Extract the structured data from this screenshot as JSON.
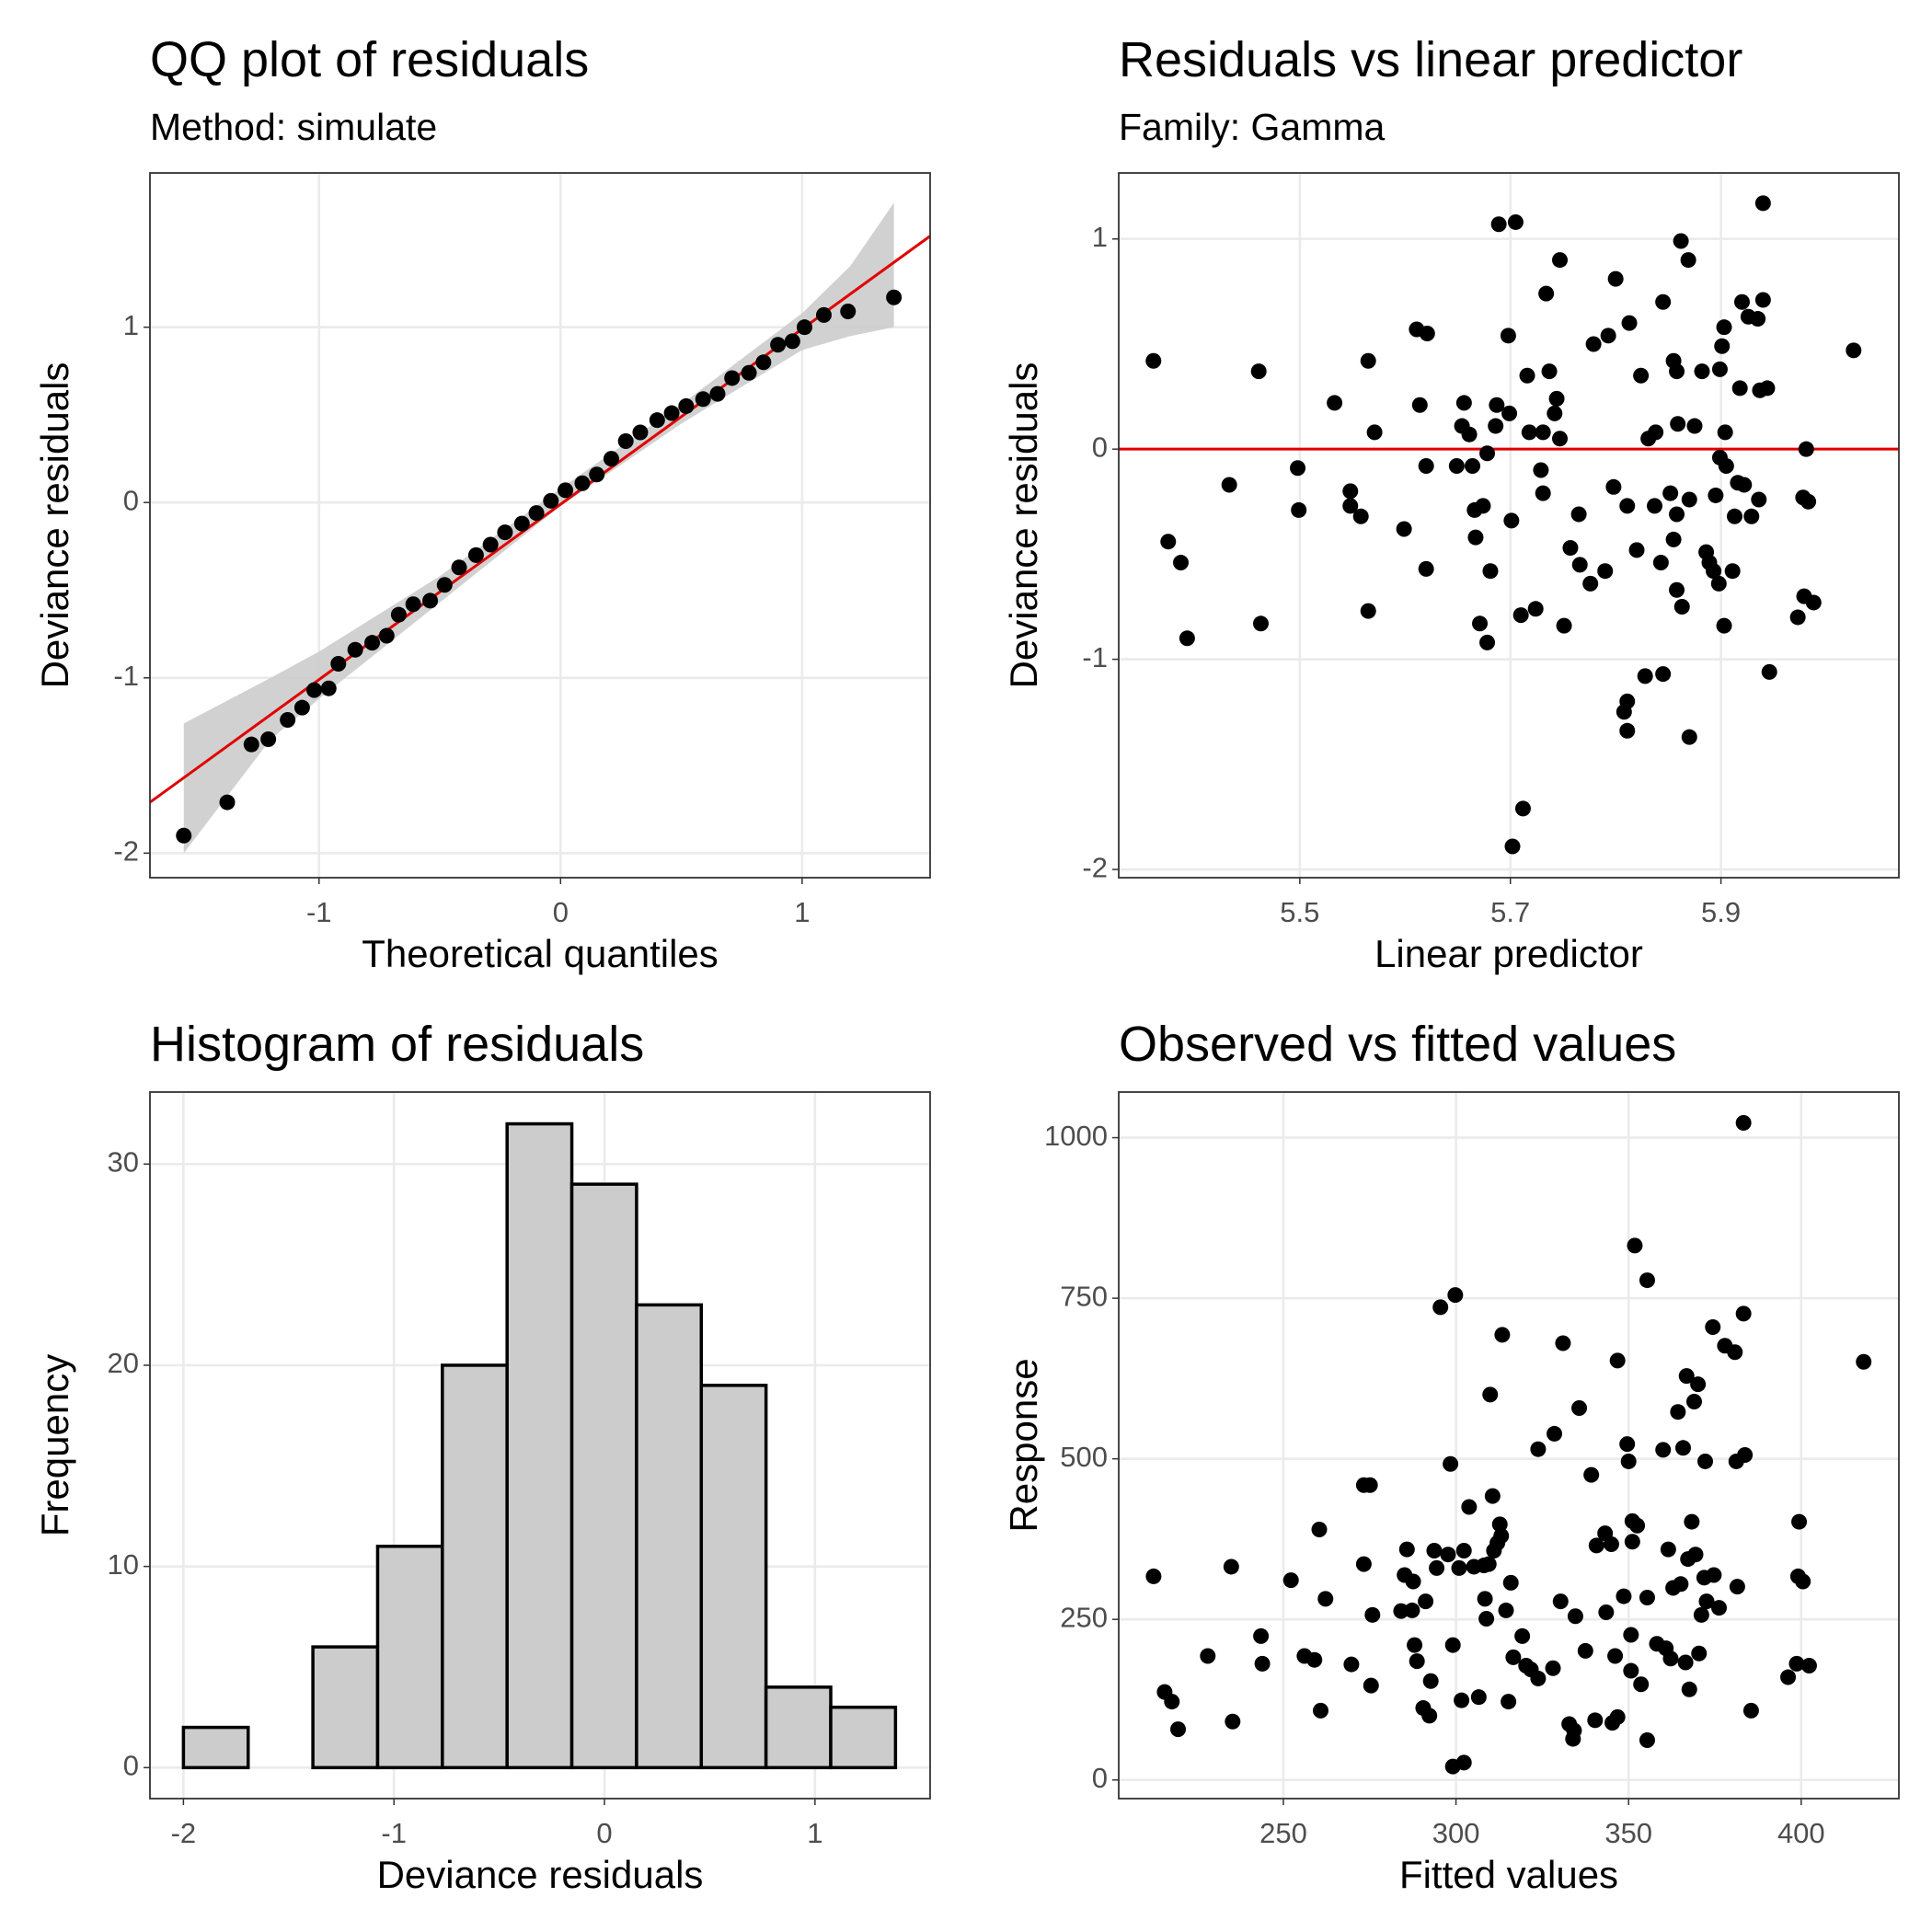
{
  "chart_data": [
    {
      "type": "qq",
      "title": "QQ plot of residuals",
      "subtitle": "Method: simulate",
      "xlabel": "Theoretical quantiles",
      "ylabel": "Deviance residuals",
      "xlim": [
        -1.7,
        1.53
      ],
      "ylim": [
        -2.14,
        1.88
      ],
      "xticks": [
        -1,
        0,
        1
      ],
      "yticks": [
        -2,
        -1,
        0,
        1
      ],
      "grid": true,
      "color": "#000000",
      "x": [
        -1.56,
        -1.38,
        -1.28,
        -1.21,
        -1.13,
        -1.07,
        -1.02,
        -0.96,
        -0.92,
        -0.85,
        -0.78,
        -0.72,
        -0.67,
        -0.61,
        -0.54,
        -0.48,
        -0.42,
        -0.35,
        -0.29,
        -0.23,
        -0.16,
        -0.1,
        -0.04,
        0.02,
        0.09,
        0.15,
        0.21,
        0.27,
        0.33,
        0.4,
        0.46,
        0.52,
        0.59,
        0.65,
        0.71,
        0.78,
        0.84,
        0.9,
        0.96,
        1.01,
        1.09,
        1.19,
        1.38
      ],
      "values": [
        -1.9,
        -1.71,
        -1.38,
        -1.35,
        -1.24,
        -1.17,
        -1.07,
        -1.06,
        -0.92,
        -0.84,
        -0.8,
        -0.76,
        -0.64,
        -0.58,
        -0.56,
        -0.47,
        -0.37,
        -0.3,
        -0.24,
        -0.17,
        -0.12,
        -0.06,
        0.01,
        0.07,
        0.11,
        0.16,
        0.25,
        0.35,
        0.4,
        0.47,
        0.51,
        0.55,
        0.59,
        0.62,
        0.71,
        0.74,
        0.8,
        0.9,
        0.92,
        1.0,
        1.07,
        1.09,
        1.17
      ],
      "band": {
        "color": "#cccccc",
        "x": [
          -1.56,
          -1.2,
          -1.0,
          -0.5,
          0,
          0.5,
          1.0,
          1.2,
          1.38
        ],
        "lower": [
          -2.0,
          -1.35,
          -1.12,
          -0.57,
          -0.02,
          0.45,
          0.87,
          0.95,
          1.0
        ],
        "upper": [
          -1.26,
          -1.0,
          -0.85,
          -0.42,
          0.08,
          0.56,
          1.08,
          1.35,
          1.71
        ]
      },
      "reference_line": {
        "intercept": -0.01,
        "slope": 1.0,
        "color": "#e00000"
      }
    },
    {
      "type": "scatter",
      "title": "Residuals vs linear predictor",
      "subtitle": "Family: Gamma",
      "xlabel": "Linear predictor",
      "ylabel": "Deviance residuals",
      "xlim": [
        5.328,
        6.069
      ],
      "ylim": [
        -2.039,
        1.314
      ],
      "xticks": [
        5.5,
        5.7,
        5.9
      ],
      "yticks": [
        -2,
        -1,
        0,
        1
      ],
      "grid": true,
      "color": "#000000",
      "hline": {
        "value": 0,
        "color": "#e00000"
      },
      "x": [
        5.361,
        5.375,
        5.387,
        5.393,
        5.433,
        5.461,
        5.463,
        5.498,
        5.499,
        5.533,
        5.548,
        5.548,
        5.558,
        5.565,
        5.565,
        5.571,
        5.599,
        5.611,
        5.614,
        5.621,
        5.62,
        5.62,
        5.649,
        5.654,
        5.656,
        5.661,
        5.664,
        5.666,
        5.667,
        5.671,
        5.678,
        5.674,
        5.678,
        5.681,
        5.686,
        5.689,
        5.687,
        5.698,
        5.699,
        5.701,
        5.705,
        5.71,
        5.712,
        5.702,
        5.716,
        5.718,
        5.724,
        5.731,
        5.734,
        5.737,
        5.742,
        5.744,
        5.747,
        5.747,
        5.729,
        5.731,
        5.751,
        5.757,
        5.765,
        5.766,
        5.776,
        5.779,
        5.79,
        5.793,
        5.8,
        5.798,
        5.811,
        5.813,
        5.808,
        5.811,
        5.811,
        5.82,
        5.824,
        5.828,
        5.831,
        5.837,
        5.838,
        5.843,
        5.845,
        5.845,
        5.852,
        5.855,
        5.855,
        5.858,
        5.858,
        5.858,
        5.859,
        5.862,
        5.863,
        5.869,
        5.87,
        5.87,
        5.875,
        5.882,
        5.886,
        5.889,
        5.893,
        5.895,
        5.898,
        5.899,
        5.899,
        5.901,
        5.903,
        5.904,
        5.905,
        5.903,
        5.911,
        5.913,
        5.918,
        5.92,
        5.916,
        5.922,
        5.926,
        5.929,
        5.935,
        5.936,
        5.937,
        5.94,
        5.94,
        5.944,
        5.946,
        5.973,
        5.978,
        5.979,
        5.981,
        5.983,
        5.988,
        6.026
      ],
      "values": [
        0.42,
        -0.44,
        -0.54,
        -0.9,
        -0.17,
        0.37,
        -0.83,
        -0.09,
        -0.29,
        0.22,
        -0.2,
        -0.27,
        -0.32,
        0.42,
        -0.77,
        0.08,
        -0.38,
        0.57,
        0.21,
        0.55,
        -0.08,
        -0.57,
        -0.08,
        0.11,
        0.22,
        0.07,
        -0.08,
        -0.29,
        -0.42,
        -0.83,
        -0.02,
        -0.27,
        -0.92,
        -0.58,
        0.11,
        1.07,
        0.21,
        0.54,
        0.17,
        -0.34,
        1.08,
        -0.79,
        -1.71,
        -1.89,
        0.35,
        0.08,
        -0.76,
        0.08,
        0.74,
        0.37,
        0.17,
        0.24,
        0.9,
        0.05,
        -0.1,
        -0.21,
        -0.84,
        -0.47,
        -0.31,
        -0.55,
        -0.64,
        0.5,
        -0.58,
        0.54,
        0.81,
        -0.18,
        -0.27,
        0.6,
        -1.25,
        -1.2,
        -1.34,
        -0.48,
        0.35,
        -1.08,
        0.05,
        -0.27,
        0.08,
        -0.54,
        0.7,
        -1.07,
        -0.21,
        0.42,
        -0.43,
        -0.31,
        0.37,
        -0.67,
        0.12,
        0.99,
        -0.75,
        0.9,
        -1.37,
        -0.24,
        0.11,
        0.37,
        -0.49,
        -0.54,
        -0.58,
        -0.22,
        -0.64,
        0.38,
        -0.04,
        0.49,
        0.58,
        0.08,
        -0.08,
        -0.84,
        -0.58,
        -0.32,
        0.29,
        0.7,
        -0.16,
        -0.17,
        0.63,
        -0.32,
        0.62,
        -0.24,
        0.28,
        1.17,
        0.71,
        0.29,
        -1.06,
        -0.8,
        -0.23,
        -0.7,
        0.0,
        -0.25,
        -0.73,
        0.47
      ]
    },
    {
      "type": "histogram",
      "title": "Histogram of residuals",
      "xlabel": "Deviance residuals",
      "ylabel": "Frequency",
      "xlim": [
        -2.159,
        1.547
      ],
      "ylim": [
        -1.54,
        33.58
      ],
      "xticks": [
        -2,
        -1,
        0,
        1
      ],
      "yticks": [
        0,
        10,
        20,
        30
      ],
      "grid": true,
      "color": "#cccccc",
      "edgecolor": "#000000",
      "bins": [
        -2,
        -1.6925,
        -1.385,
        -1.0775,
        -0.77,
        -0.4625,
        -0.155,
        0.1525,
        0.46,
        0.7675,
        1.075,
        1.3825
      ],
      "counts": [
        2,
        0,
        6,
        11,
        20,
        32,
        29,
        23,
        19,
        4,
        3
      ]
    },
    {
      "type": "scatter",
      "title": "Observed vs fitted values",
      "xlabel": "Fitted values",
      "ylabel": "Response",
      "xlim": [
        202.3,
        428.3
      ],
      "ylim": [
        -29,
        1071
      ],
      "xticks": [
        250,
        300,
        350,
        400
      ],
      "yticks": [
        0,
        250,
        500,
        750,
        1000
      ],
      "grid": true,
      "color": "#000000",
      "x": [
        212.4,
        215.6,
        217.7,
        219.5,
        228.1,
        234.9,
        235.3,
        243.5,
        243.9,
        252.2,
        256.1,
        259.0,
        260.4,
        260.8,
        262.2,
        269.7,
        273.3,
        273.3,
        275.1,
        275.8,
        275.4,
        284.1,
        285.1,
        285.8,
        287.3,
        287.6,
        288.0,
        288.7,
        290.5,
        291.2,
        292.7,
        292.3,
        293.7,
        294.4,
        295.5,
        297.7,
        298.4,
        299.1,
        299.8,
        299.1,
        300.9,
        301.6,
        302.3,
        302.3,
        303.8,
        305.2,
        306.6,
        308.1,
        308.4,
        308.8,
        309.5,
        309.9,
        310.6,
        311.0,
        312.0,
        312.7,
        313.1,
        313.4,
        314.5,
        315.2,
        315.9,
        316.6,
        319.2,
        320.3,
        321.7,
        323.8,
        323.8,
        328.1,
        328.5,
        330.3,
        331.0,
        332.8,
        333.9,
        334.2,
        334.6,
        335.7,
        337.5,
        339.2,
        340.3,
        340.7,
        343.2,
        343.5,
        345.0,
        345.3,
        346.1,
        346.8,
        346.8,
        348.6,
        349.6,
        350.0,
        350.7,
        350.7,
        351.1,
        351.1,
        351.8,
        352.5,
        353.6,
        355.4,
        355.4,
        355.4,
        358.2,
        360.0,
        360.8,
        361.5,
        362.2,
        362.9,
        364.3,
        365.1,
        365.8,
        366.5,
        366.8,
        367.2,
        367.6,
        368.3,
        369.0,
        369.4,
        370.1,
        370.4,
        371.1,
        372.2,
        371.9,
        372.6,
        374.4,
        374.7,
        376.2,
        377.9,
        380.8,
        381.2,
        381.5,
        383.3,
        383.3,
        383.7,
        385.5,
        396.2,
        398.7,
        399.1,
        399.4,
        400.5,
        402.3,
        418.1
      ],
      "values": [
        317,
        137,
        122,
        79,
        193,
        332,
        91,
        224,
        181,
        311,
        193,
        187,
        390,
        108,
        282,
        180,
        336,
        459,
        459,
        257,
        147,
        263,
        319,
        359,
        264,
        309,
        210,
        185,
        112,
        278,
        154,
        100,
        357,
        330,
        736,
        351,
        492,
        210,
        755,
        21,
        330,
        124,
        27,
        357,
        425,
        332,
        129,
        334,
        282,
        251,
        336,
        600,
        442,
        357,
        369,
        398,
        380,
        693,
        264,
        122,
        307,
        191,
        224,
        178,
        172,
        158,
        515,
        174,
        539,
        278,
        680,
        87,
        64,
        77,
        255,
        579,
        201,
        475,
        93,
        365,
        384,
        261,
        367,
        89,
        193,
        98,
        653,
        286,
        523,
        496,
        226,
        170,
        403,
        371,
        832,
        396,
        149,
        778,
        284,
        62,
        212,
        514,
        205,
        359,
        189,
        299,
        573,
        305,
        517,
        183,
        629,
        344,
        141,
        402,
        589,
        351,
        616,
        197,
        257,
        496,
        315,
        278,
        705,
        319,
        268,
        676,
        666,
        496,
        301,
        1023,
        726,
        506,
        108,
        160,
        181,
        317,
        402,
        309,
        178,
        651
      ]
    }
  ]
}
